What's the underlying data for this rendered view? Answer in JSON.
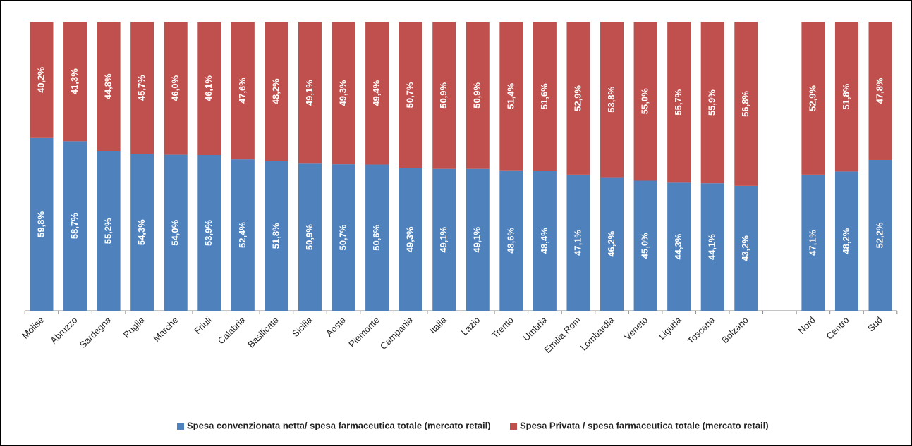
{
  "chart_data": {
    "type": "bar",
    "stacked": true,
    "categories": [
      "Molise",
      "Abruzzo",
      "Sardegna",
      "Puglia",
      "Marche",
      "Friuli",
      "Calabria",
      "Basilicata",
      "Sicilia",
      "Aosta",
      "Piemonte",
      "Campania",
      "Italia",
      "Lazio",
      "Trento",
      "Umbria",
      "Emilia Rom",
      "Lombardia",
      "Veneto",
      "Liguria",
      "Toscana",
      "Bolzano",
      null,
      "Nord",
      "Centro",
      "Sud"
    ],
    "ylim": [
      0,
      100
    ],
    "legend": "bottom",
    "series": [
      {
        "name": "Spesa convenzionata netta/ spesa farmaceutica totale (mercato retail)",
        "color": "#4f81bd",
        "values": [
          59.8,
          58.7,
          55.2,
          54.3,
          54.0,
          53.9,
          52.4,
          51.8,
          50.9,
          50.7,
          50.6,
          49.3,
          49.1,
          49.1,
          48.6,
          48.4,
          47.1,
          46.2,
          45.0,
          44.3,
          44.1,
          43.2,
          null,
          47.1,
          48.2,
          52.2
        ],
        "value_labels": [
          "59,8%",
          "58,7%",
          "55,2%",
          "54,3%",
          "54,0%",
          "53,9%",
          "52,4%",
          "51,8%",
          "50,9%",
          "50,7%",
          "50,6%",
          "49,3%",
          "49,1%",
          "49,1%",
          "48,6%",
          "48,4%",
          "47,1%",
          "46,2%",
          "45,0%",
          "44,3%",
          "44,1%",
          "43,2%",
          null,
          "47,1%",
          "48,2%",
          "52,2%"
        ]
      },
      {
        "name": "Spesa Privata / spesa farmaceutica totale (mercato retail)",
        "color": "#c0504d",
        "values": [
          40.2,
          41.3,
          44.8,
          45.7,
          46.0,
          46.1,
          47.6,
          48.2,
          49.1,
          49.3,
          49.4,
          50.7,
          50.9,
          50.9,
          51.4,
          51.6,
          52.9,
          53.8,
          55.0,
          55.7,
          55.9,
          56.8,
          null,
          52.9,
          51.8,
          47.8
        ],
        "value_labels": [
          "40,2%",
          "41,3%",
          "44,8%",
          "45,7%",
          "46,0%",
          "46,1%",
          "47,6%",
          "48,2%",
          "49,1%",
          "49,3%",
          "49,4%",
          "50,7%",
          "50,9%",
          "50,9%",
          "51,4%",
          "51,6%",
          "52,9%",
          "53,8%",
          "55,0%",
          "55,7%",
          "55,9%",
          "56,8%",
          null,
          "52,9%",
          "51,8%",
          "47,8%"
        ]
      }
    ]
  }
}
